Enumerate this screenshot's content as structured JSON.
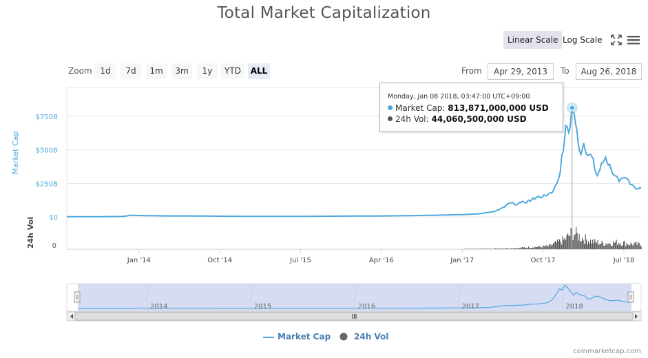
{
  "title": "Total Market Capitalization",
  "toolbar": {
    "linear_label": "Linear Scale",
    "log_label": "Log Scale",
    "zoom_label": "Zoom",
    "zoom_buttons": [
      "1d",
      "7d",
      "1m",
      "3m",
      "1y",
      "YTD",
      "ALL"
    ],
    "zoom_active": "ALL",
    "from_label": "From",
    "from_value": "Apr 29, 2013",
    "to_label": "To",
    "to_value": "Aug 26, 2018"
  },
  "tooltip": {
    "date": "Monday, Jan 08 2018, 03:47:00 UTC+09:00",
    "mc_label": "Market Cap:",
    "mc_value": "813,871,000,000 USD",
    "vol_label": "24h Vol:",
    "vol_value": "44,060,500,000 USD"
  },
  "legend": {
    "mc": "Market Cap",
    "vol": "24h Vol"
  },
  "credit": "coinmarketcap.com",
  "colors": {
    "mc": "#4fa9df",
    "vol": "#666666",
    "axis_mc": "#4fa9df"
  },
  "chart_data": {
    "type": "line",
    "title": "Total Market Capitalization",
    "ylabel": "Market Cap",
    "ylabel2": "24h Vol",
    "ylim": [
      0,
      900
    ],
    "yticks": [
      {
        "v": 0,
        "label": "$0"
      },
      {
        "v": 250,
        "label": "$250B"
      },
      {
        "v": 500,
        "label": "$500B"
      },
      {
        "v": 750,
        "label": "$750B"
      }
    ],
    "vol_tick": "0",
    "xlim": [
      2013.33,
      2018.66
    ],
    "xticks": [
      {
        "v": 2014.0,
        "label": "Jan '14"
      },
      {
        "v": 2014.75,
        "label": "Oct '14"
      },
      {
        "v": 2015.5,
        "label": "Jul '15"
      },
      {
        "v": 2016.25,
        "label": "Apr '16"
      },
      {
        "v": 2017.0,
        "label": "Jan '17"
      },
      {
        "v": 2017.75,
        "label": "Oct '17"
      },
      {
        "v": 2018.5,
        "label": "Jul '18"
      }
    ],
    "navigator_years": [
      {
        "v": 2014.0,
        "label": "2014"
      },
      {
        "v": 2015.0,
        "label": "2015"
      },
      {
        "v": 2016.0,
        "label": "2016"
      },
      {
        "v": 2017.0,
        "label": "2017"
      },
      {
        "v": 2018.0,
        "label": "2018"
      }
    ],
    "series": [
      {
        "name": "Market Cap",
        "unit": "B USD",
        "points": [
          [
            2013.33,
            1.5
          ],
          [
            2013.6,
            1.2
          ],
          [
            2013.85,
            3
          ],
          [
            2013.92,
            12
          ],
          [
            2014.0,
            10
          ],
          [
            2014.1,
            9
          ],
          [
            2014.3,
            7
          ],
          [
            2014.5,
            7
          ],
          [
            2014.75,
            5
          ],
          [
            2015.0,
            4
          ],
          [
            2015.5,
            4
          ],
          [
            2016.0,
            6
          ],
          [
            2016.25,
            7
          ],
          [
            2016.5,
            9
          ],
          [
            2016.75,
            12
          ],
          [
            2017.0,
            17
          ],
          [
            2017.15,
            22
          ],
          [
            2017.3,
            40
          ],
          [
            2017.4,
            80
          ],
          [
            2017.45,
            110
          ],
          [
            2017.5,
            90
          ],
          [
            2017.55,
            115
          ],
          [
            2017.6,
            110
          ],
          [
            2017.7,
            150
          ],
          [
            2017.75,
            150
          ],
          [
            2017.8,
            170
          ],
          [
            2017.85,
            200
          ],
          [
            2017.9,
            300
          ],
          [
            2017.95,
            580
          ],
          [
            2017.97,
            690
          ],
          [
            2017.99,
            620
          ],
          [
            2018.02,
            814
          ],
          [
            2018.05,
            700
          ],
          [
            2018.1,
            460
          ],
          [
            2018.13,
            560
          ],
          [
            2018.17,
            450
          ],
          [
            2018.2,
            460
          ],
          [
            2018.25,
            300
          ],
          [
            2018.3,
            400
          ],
          [
            2018.33,
            445
          ],
          [
            2018.38,
            360
          ],
          [
            2018.42,
            305
          ],
          [
            2018.46,
            260
          ],
          [
            2018.52,
            290
          ],
          [
            2018.58,
            240
          ],
          [
            2018.62,
            210
          ],
          [
            2018.66,
            215
          ]
        ]
      },
      {
        "name": "24h Vol",
        "unit": "B USD",
        "points": [
          [
            2013.33,
            0
          ],
          [
            2016.9,
            0.2
          ],
          [
            2017.2,
            1
          ],
          [
            2017.5,
            3
          ],
          [
            2017.8,
            8
          ],
          [
            2017.95,
            25
          ],
          [
            2018.02,
            44
          ],
          [
            2018.1,
            30
          ],
          [
            2018.2,
            20
          ],
          [
            2018.3,
            15
          ],
          [
            2018.45,
            18
          ],
          [
            2018.55,
            14
          ],
          [
            2018.66,
            12
          ]
        ]
      }
    ],
    "highlight": {
      "x": 2018.02,
      "y": 813.871,
      "vol": 44.06
    }
  }
}
